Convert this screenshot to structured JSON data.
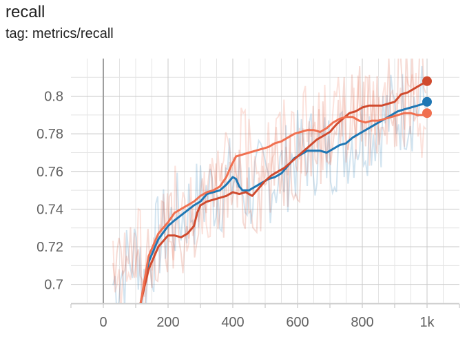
{
  "header": {
    "title": "recall",
    "tag": "tag: metrics/recall"
  },
  "chart_data": {
    "type": "line",
    "xlim": [
      -100,
      1100
    ],
    "ylim": [
      0.69,
      0.82
    ],
    "x_ticks": [
      0,
      200,
      400,
      600,
      800,
      1000
    ],
    "x_tick_labels": [
      "0",
      "200",
      "400",
      "600",
      "800",
      "1k"
    ],
    "y_ticks": [
      0.7,
      0.72,
      0.74,
      0.76,
      0.78,
      0.8
    ],
    "y_tick_labels": [
      "0.7",
      "0.72",
      "0.74",
      "0.76",
      "0.78",
      "0.8"
    ],
    "grid": true,
    "series": [
      {
        "color": "#1f77b4",
        "points": [
          [
            115,
            0.69
          ],
          [
            140,
            0.712
          ],
          [
            170,
            0.724
          ],
          [
            200,
            0.731
          ],
          [
            220,
            0.734
          ],
          [
            250,
            0.738
          ],
          [
            280,
            0.742
          ],
          [
            300,
            0.744
          ],
          [
            320,
            0.748
          ],
          [
            340,
            0.749
          ],
          [
            360,
            0.75
          ],
          [
            380,
            0.753
          ],
          [
            390,
            0.755
          ],
          [
            400,
            0.757
          ],
          [
            410,
            0.756
          ],
          [
            420,
            0.752
          ],
          [
            430,
            0.75
          ],
          [
            450,
            0.75
          ],
          [
            470,
            0.752
          ],
          [
            490,
            0.754
          ],
          [
            510,
            0.756
          ],
          [
            530,
            0.757
          ],
          [
            550,
            0.759
          ],
          [
            570,
            0.763
          ],
          [
            590,
            0.767
          ],
          [
            610,
            0.769
          ],
          [
            630,
            0.771
          ],
          [
            650,
            0.771
          ],
          [
            670,
            0.771
          ],
          [
            690,
            0.77
          ],
          [
            710,
            0.772
          ],
          [
            730,
            0.774
          ],
          [
            750,
            0.775
          ],
          [
            770,
            0.778
          ],
          [
            790,
            0.78
          ],
          [
            810,
            0.782
          ],
          [
            830,
            0.784
          ],
          [
            850,
            0.786
          ],
          [
            870,
            0.788
          ],
          [
            890,
            0.79
          ],
          [
            910,
            0.792
          ],
          [
            930,
            0.793
          ],
          [
            950,
            0.794
          ],
          [
            970,
            0.795
          ],
          [
            990,
            0.796
          ],
          [
            1000,
            0.797
          ]
        ]
      },
      {
        "color": "#d04a2e",
        "points": [
          [
            115,
            0.69
          ],
          [
            140,
            0.708
          ],
          [
            170,
            0.72
          ],
          [
            200,
            0.726
          ],
          [
            220,
            0.726
          ],
          [
            240,
            0.725
          ],
          [
            260,
            0.727
          ],
          [
            280,
            0.731
          ],
          [
            290,
            0.738
          ],
          [
            300,
            0.742
          ],
          [
            320,
            0.744
          ],
          [
            340,
            0.745
          ],
          [
            360,
            0.746
          ],
          [
            380,
            0.747
          ],
          [
            400,
            0.749
          ],
          [
            420,
            0.748
          ],
          [
            440,
            0.749
          ],
          [
            460,
            0.747
          ],
          [
            480,
            0.751
          ],
          [
            500,
            0.755
          ],
          [
            520,
            0.758
          ],
          [
            540,
            0.76
          ],
          [
            560,
            0.762
          ],
          [
            580,
            0.765
          ],
          [
            600,
            0.768
          ],
          [
            620,
            0.771
          ],
          [
            640,
            0.774
          ],
          [
            660,
            0.777
          ],
          [
            680,
            0.779
          ],
          [
            700,
            0.781
          ],
          [
            720,
            0.785
          ],
          [
            740,
            0.788
          ],
          [
            760,
            0.791
          ],
          [
            780,
            0.792
          ],
          [
            800,
            0.794
          ],
          [
            820,
            0.795
          ],
          [
            840,
            0.795
          ],
          [
            860,
            0.795
          ],
          [
            880,
            0.796
          ],
          [
            900,
            0.797
          ],
          [
            920,
            0.801
          ],
          [
            940,
            0.802
          ],
          [
            960,
            0.804
          ],
          [
            980,
            0.806
          ],
          [
            1000,
            0.808
          ]
        ]
      },
      {
        "color": "#f07050",
        "points": [
          [
            115,
            0.69
          ],
          [
            140,
            0.715
          ],
          [
            170,
            0.727
          ],
          [
            200,
            0.733
          ],
          [
            220,
            0.738
          ],
          [
            250,
            0.741
          ],
          [
            280,
            0.744
          ],
          [
            300,
            0.747
          ],
          [
            320,
            0.749
          ],
          [
            340,
            0.75
          ],
          [
            360,
            0.752
          ],
          [
            380,
            0.757
          ],
          [
            395,
            0.763
          ],
          [
            410,
            0.768
          ],
          [
            430,
            0.769
          ],
          [
            450,
            0.77
          ],
          [
            470,
            0.771
          ],
          [
            490,
            0.772
          ],
          [
            510,
            0.773
          ],
          [
            530,
            0.775
          ],
          [
            550,
            0.776
          ],
          [
            570,
            0.778
          ],
          [
            590,
            0.78
          ],
          [
            610,
            0.781
          ],
          [
            630,
            0.782
          ],
          [
            650,
            0.782
          ],
          [
            670,
            0.781
          ],
          [
            690,
            0.783
          ],
          [
            710,
            0.786
          ],
          [
            730,
            0.788
          ],
          [
            750,
            0.789
          ],
          [
            770,
            0.789
          ],
          [
            790,
            0.787
          ],
          [
            810,
            0.786
          ],
          [
            830,
            0.787
          ],
          [
            850,
            0.787
          ],
          [
            870,
            0.788
          ],
          [
            890,
            0.789
          ],
          [
            910,
            0.79
          ],
          [
            930,
            0.791
          ],
          [
            950,
            0.791
          ],
          [
            970,
            0.79
          ],
          [
            990,
            0.79
          ],
          [
            1000,
            0.791
          ]
        ]
      }
    ]
  }
}
